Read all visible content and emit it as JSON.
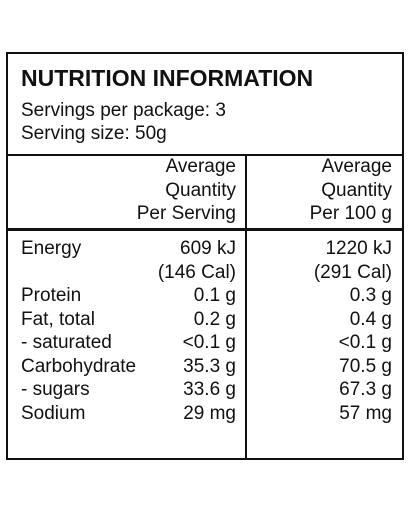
{
  "header": {
    "title": "NUTRITION INFORMATION",
    "servings_per_package": "Servings per package: 3",
    "serving_size": "Serving size: 50g"
  },
  "table": {
    "columns": [
      [
        "Average",
        "Quantity",
        "Per Serving"
      ],
      [
        "Average",
        "Quantity",
        "Per 100 g"
      ]
    ],
    "rows": [
      [
        "Energy",
        [
          "609 kJ",
          "(146 Cal)"
        ],
        [
          "1220 kJ",
          "(291 Cal)"
        ]
      ],
      [
        "Protein",
        [
          "0.1 g"
        ],
        [
          "0.3 g"
        ]
      ],
      [
        "Fat, total",
        [
          "0.2 g"
        ],
        [
          "0.4 g"
        ]
      ],
      [
        "- saturated",
        [
          "<0.1 g"
        ],
        [
          "<0.1 g"
        ]
      ],
      [
        "Carbohydrate",
        [
          "35.3 g"
        ],
        [
          "70.5 g"
        ]
      ],
      [
        "- sugars",
        [
          "33.6 g"
        ],
        [
          "67.3 g"
        ]
      ],
      [
        "Sodium",
        [
          "29 mg"
        ],
        [
          "57 mg"
        ]
      ]
    ]
  }
}
